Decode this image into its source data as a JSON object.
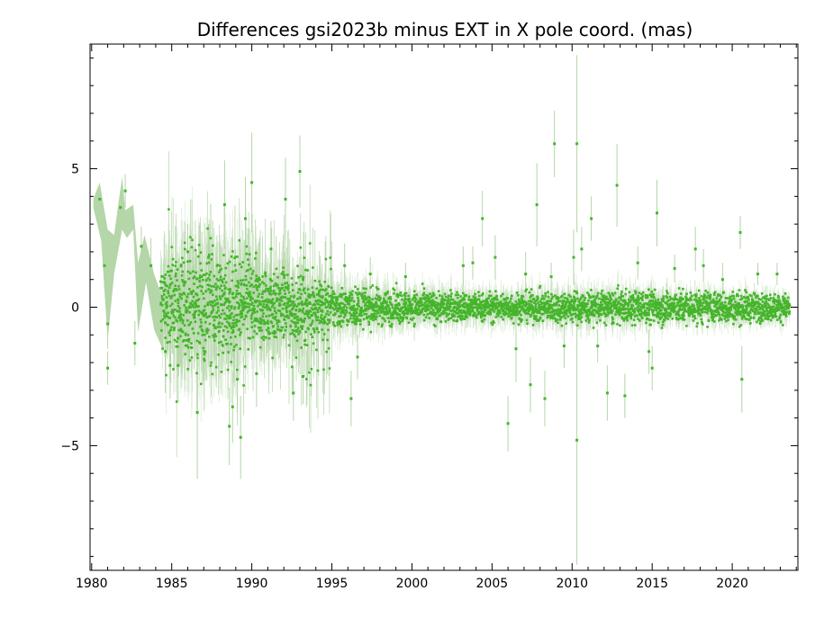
{
  "chart_data": {
    "type": "scatter",
    "title": "Differences gsi2023b minus EXT in X pole coord. (mas)",
    "xlabel": "",
    "ylabel": "",
    "xlim": [
      1979.9,
      2024.1
    ],
    "ylim": [
      -9.5,
      9.5
    ],
    "x_ticks": [
      1980,
      1985,
      1990,
      1995,
      2000,
      2005,
      2010,
      2015,
      2020
    ],
    "y_ticks": [
      -5,
      0,
      5
    ],
    "grid": false,
    "legend": "none",
    "colors": {
      "points": "#44b52a",
      "error_bars": "#b4d6a8",
      "axes": "#000000"
    },
    "outliers": [
      {
        "x": 1980.5,
        "y": 3.9,
        "err": 0.5
      },
      {
        "x": 1980.8,
        "y": 1.5,
        "err": 0.8
      },
      {
        "x": 1981.0,
        "y": -0.6,
        "err": 0.9
      },
      {
        "x": 1981.0,
        "y": -2.2,
        "err": 0.6
      },
      {
        "x": 1981.8,
        "y": 3.6,
        "err": 0.6
      },
      {
        "x": 1982.1,
        "y": 4.2,
        "err": 0.6
      },
      {
        "x": 1982.7,
        "y": -1.3,
        "err": 0.8
      },
      {
        "x": 1983.1,
        "y": 2.2,
        "err": 0.7
      },
      {
        "x": 1983.7,
        "y": 1.5,
        "err": 1.0
      },
      {
        "x": 1984.6,
        "y": -1.6,
        "err": 1.5
      },
      {
        "x": 1984.9,
        "y": -2.1,
        "err": 1.2
      },
      {
        "x": 1985.4,
        "y": -2.1,
        "err": 1.3
      },
      {
        "x": 1986.0,
        "y": 2.0,
        "err": 1.0
      },
      {
        "x": 1986.6,
        "y": -3.8,
        "err": 2.4
      },
      {
        "x": 1987.3,
        "y": 1.8,
        "err": 1.2
      },
      {
        "x": 1988.3,
        "y": 3.7,
        "err": 1.6
      },
      {
        "x": 1988.6,
        "y": -4.3,
        "err": 1.4
      },
      {
        "x": 1988.8,
        "y": -3.6,
        "err": 1.3
      },
      {
        "x": 1989.1,
        "y": -2.6,
        "err": 1.2
      },
      {
        "x": 1989.3,
        "y": -4.7,
        "err": 1.5
      },
      {
        "x": 1989.6,
        "y": 3.2,
        "err": 1.5
      },
      {
        "x": 1990.0,
        "y": 4.5,
        "err": 1.8
      },
      {
        "x": 1990.3,
        "y": -2.4,
        "err": 1.2
      },
      {
        "x": 1991.2,
        "y": 2.1,
        "err": 1.0
      },
      {
        "x": 1992.1,
        "y": 3.9,
        "err": 1.5
      },
      {
        "x": 1992.6,
        "y": -3.1,
        "err": 1.0
      },
      {
        "x": 1993.0,
        "y": 4.9,
        "err": 1.3
      },
      {
        "x": 1993.2,
        "y": -2.5,
        "err": 1.0
      },
      {
        "x": 1995.8,
        "y": 1.5,
        "err": 0.8
      },
      {
        "x": 1996.2,
        "y": -3.3,
        "err": 1.0
      },
      {
        "x": 1996.6,
        "y": -1.8,
        "err": 0.8
      },
      {
        "x": 1997.4,
        "y": 1.2,
        "err": 0.6
      },
      {
        "x": 1999.6,
        "y": 1.1,
        "err": 0.5
      },
      {
        "x": 2003.2,
        "y": 1.5,
        "err": 0.7
      },
      {
        "x": 2003.8,
        "y": 1.6,
        "err": 0.6
      },
      {
        "x": 2004.4,
        "y": 3.2,
        "err": 1.0
      },
      {
        "x": 2005.2,
        "y": 1.8,
        "err": 0.8
      },
      {
        "x": 2006.0,
        "y": -4.2,
        "err": 1.0
      },
      {
        "x": 2006.5,
        "y": -1.5,
        "err": 1.2
      },
      {
        "x": 2007.1,
        "y": 1.2,
        "err": 0.8
      },
      {
        "x": 2007.4,
        "y": -2.8,
        "err": 1.0
      },
      {
        "x": 2007.8,
        "y": 3.7,
        "err": 1.5
      },
      {
        "x": 2008.3,
        "y": -3.3,
        "err": 1.0
      },
      {
        "x": 2008.7,
        "y": 1.1,
        "err": 0.5
      },
      {
        "x": 2008.9,
        "y": 5.9,
        "err": 1.2
      },
      {
        "x": 2009.5,
        "y": -1.4,
        "err": 0.8
      },
      {
        "x": 2010.1,
        "y": 1.8,
        "err": 1.0
      },
      {
        "x": 2010.3,
        "y": 5.9,
        "err": 3.2
      },
      {
        "x": 2010.3,
        "y": -4.8,
        "err": 4.5
      },
      {
        "x": 2010.6,
        "y": 2.1,
        "err": 0.8
      },
      {
        "x": 2011.2,
        "y": 3.2,
        "err": 0.8
      },
      {
        "x": 2011.6,
        "y": -1.4,
        "err": 0.6
      },
      {
        "x": 2012.2,
        "y": -3.1,
        "err": 1.0
      },
      {
        "x": 2012.8,
        "y": 4.4,
        "err": 1.5
      },
      {
        "x": 2013.3,
        "y": -3.2,
        "err": 0.8
      },
      {
        "x": 2014.1,
        "y": 1.6,
        "err": 0.6
      },
      {
        "x": 2014.8,
        "y": -1.6,
        "err": 0.8
      },
      {
        "x": 2015.0,
        "y": -2.2,
        "err": 0.8
      },
      {
        "x": 2015.3,
        "y": 3.4,
        "err": 1.2
      },
      {
        "x": 2016.4,
        "y": 1.4,
        "err": 0.5
      },
      {
        "x": 2017.7,
        "y": 2.1,
        "err": 0.8
      },
      {
        "x": 2018.2,
        "y": 1.5,
        "err": 0.6
      },
      {
        "x": 2019.4,
        "y": 1.0,
        "err": 0.6
      },
      {
        "x": 2020.5,
        "y": 2.7,
        "err": 0.6
      },
      {
        "x": 2020.6,
        "y": -2.6,
        "err": 1.2
      },
      {
        "x": 2021.6,
        "y": 1.2,
        "err": 0.4
      },
      {
        "x": 2022.8,
        "y": 1.2,
        "err": 0.4
      }
    ],
    "core_envelope": [
      {
        "x": 1980.0,
        "spread": 0.0,
        "err": 0.0
      },
      {
        "x": 1984.0,
        "spread": 0.9,
        "err": 0.9
      },
      {
        "x": 1986.0,
        "spread": 1.0,
        "err": 1.6
      },
      {
        "x": 1989.0,
        "spread": 0.85,
        "err": 1.5
      },
      {
        "x": 1992.0,
        "spread": 0.55,
        "err": 0.9
      },
      {
        "x": 1996.0,
        "spread": 0.35,
        "err": 0.6
      },
      {
        "x": 2000.0,
        "spread": 0.28,
        "err": 0.45
      },
      {
        "x": 2005.0,
        "spread": 0.25,
        "err": 0.4
      },
      {
        "x": 2010.0,
        "spread": 0.28,
        "err": 0.45
      },
      {
        "x": 2015.0,
        "spread": 0.3,
        "err": 0.4
      },
      {
        "x": 2020.0,
        "spread": 0.28,
        "err": 0.35
      },
      {
        "x": 2023.5,
        "spread": 0.22,
        "err": 0.3
      }
    ],
    "early_band_vertices": [
      {
        "x": 1980.1,
        "y": 3.9
      },
      {
        "x": 1980.5,
        "y": 4.5
      },
      {
        "x": 1981.0,
        "y": 2.8
      },
      {
        "x": 1981.4,
        "y": 2.6
      },
      {
        "x": 1981.9,
        "y": 4.7
      },
      {
        "x": 1982.1,
        "y": 3.5
      },
      {
        "x": 1982.6,
        "y": 3.7
      },
      {
        "x": 1982.9,
        "y": 1.6
      },
      {
        "x": 1983.3,
        "y": 2.6
      },
      {
        "x": 1983.9,
        "y": 1.2
      },
      {
        "x": 1984.4,
        "y": 0.4
      },
      {
        "x": 1984.5,
        "y": -1.6
      },
      {
        "x": 1983.9,
        "y": -0.8
      },
      {
        "x": 1983.4,
        "y": 0.9
      },
      {
        "x": 1982.9,
        "y": -0.9
      },
      {
        "x": 1982.6,
        "y": 2.8
      },
      {
        "x": 1982.2,
        "y": 2.5
      },
      {
        "x": 1981.9,
        "y": 2.8
      },
      {
        "x": 1981.4,
        "y": 1.2
      },
      {
        "x": 1981.0,
        "y": -1.2
      },
      {
        "x": 1980.6,
        "y": 2.4
      },
      {
        "x": 1980.1,
        "y": 3.6
      }
    ]
  }
}
